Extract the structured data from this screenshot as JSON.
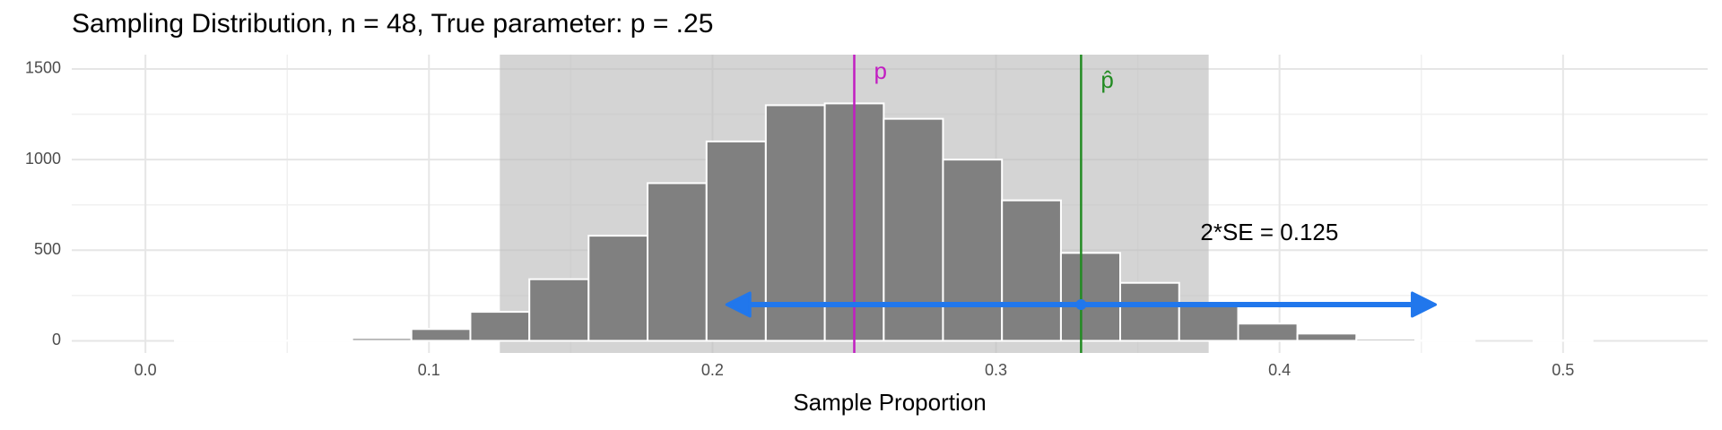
{
  "chart_data": {
    "type": "histogram",
    "title": "Sampling Distribution, n = 48, True parameter: p = .25",
    "x_label": "Sample Proportion",
    "bins": [
      -0.0104,
      0.0104,
      0.0313,
      0.0521,
      0.0729,
      0.0938,
      0.1146,
      0.1354,
      0.1563,
      0.1771,
      0.1979,
      0.2188,
      0.2396,
      0.2604,
      0.2813,
      0.3021,
      0.3229,
      0.3438,
      0.3646,
      0.3854,
      0.4063,
      0.4271,
      0.4479,
      0.4688,
      0.4896,
      0.5104
    ],
    "values": [
      0,
      3,
      1,
      3,
      15,
      65,
      160,
      340,
      580,
      870,
      1100,
      1300,
      1310,
      1225,
      1000,
      775,
      485,
      320,
      200,
      95,
      40,
      12,
      2,
      0,
      3
    ],
    "color": "#808080",
    "xlim": [
      -0.026,
      0.551
    ],
    "ylim": [
      -67,
      1579
    ],
    "xticks": [
      {
        "value": 0,
        "label": "0.0"
      },
      0.1,
      0.2,
      0.3,
      0.4,
      {
        "value": 0.5,
        "label": "0.5"
      }
    ],
    "yticks": [
      0,
      500,
      1000,
      1500
    ],
    "grid": true,
    "shaded_region": {
      "range": [
        0.125,
        0.375
      ],
      "color": "#bdbdbd"
    },
    "reference_lines": [
      {
        "label": "p",
        "value": 0.25,
        "color": "#c21ec2"
      },
      {
        "label": "p̂",
        "value": 0.33,
        "color": "#228b22"
      }
    ],
    "interval": {
      "center": 0.33,
      "half_width": 0.125,
      "label": "2*SE = 0.125",
      "color": "#2177ec"
    }
  }
}
